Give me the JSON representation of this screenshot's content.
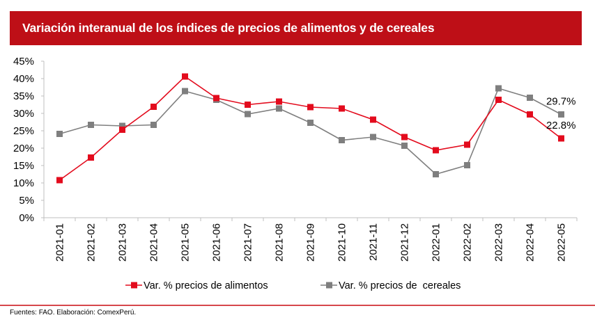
{
  "header": {
    "title": "Variación interanual de los índices de precios de alimentos y de cereales"
  },
  "colors": {
    "title_bar": "#be0f17",
    "alimentos": "#e30b1d",
    "cereales": "#7f7f7f",
    "axis": "#bfbfbf",
    "footer_rule": "#d6474c"
  },
  "chart_data": {
    "type": "line",
    "title": "Variación interanual de los índices de precios de alimentos y de cereales",
    "xlabel": "",
    "ylabel": "",
    "ylim": [
      0,
      45
    ],
    "y_ticks": [
      0,
      5,
      10,
      15,
      20,
      25,
      30,
      35,
      40,
      45
    ],
    "y_tick_labels": [
      "0%",
      "5%",
      "10%",
      "15%",
      "20%",
      "25%",
      "30%",
      "35%",
      "40%",
      "45%"
    ],
    "grid": false,
    "legend_position": "bottom",
    "categories": [
      "2021-01",
      "2021-02",
      "2021-03",
      "2021-04",
      "2021-05",
      "2021-06",
      "2021-07",
      "2021-08",
      "2021-09",
      "2021-10",
      "2021-11",
      "2021-12",
      "2022-01",
      "2022-02",
      "2022-03",
      "2022-04",
      "2022-05"
    ],
    "series": [
      {
        "name": "Var. % precios de alimentos",
        "color": "#e30b1d",
        "marker": "square",
        "values": [
          10.8,
          17.3,
          25.3,
          31.9,
          40.6,
          34.4,
          32.5,
          33.4,
          31.8,
          31.4,
          28.2,
          23.2,
          19.4,
          21.0,
          33.9,
          29.7,
          22.8
        ]
      },
      {
        "name": "Var. % precios de  cereales",
        "color": "#7f7f7f",
        "marker": "square",
        "values": [
          24.1,
          26.7,
          26.4,
          26.7,
          36.4,
          33.9,
          29.8,
          31.4,
          27.3,
          22.3,
          23.2,
          20.7,
          12.5,
          15.1,
          37.2,
          34.5,
          29.7
        ]
      }
    ],
    "annotations": [
      {
        "series": 1,
        "index": 16,
        "text": "29.7%",
        "placement": "above"
      },
      {
        "series": 0,
        "index": 16,
        "text": "22.8%",
        "placement": "above"
      }
    ]
  },
  "footer": {
    "source": "Fuentes: FAO. Elaboración: ComexPerú."
  }
}
